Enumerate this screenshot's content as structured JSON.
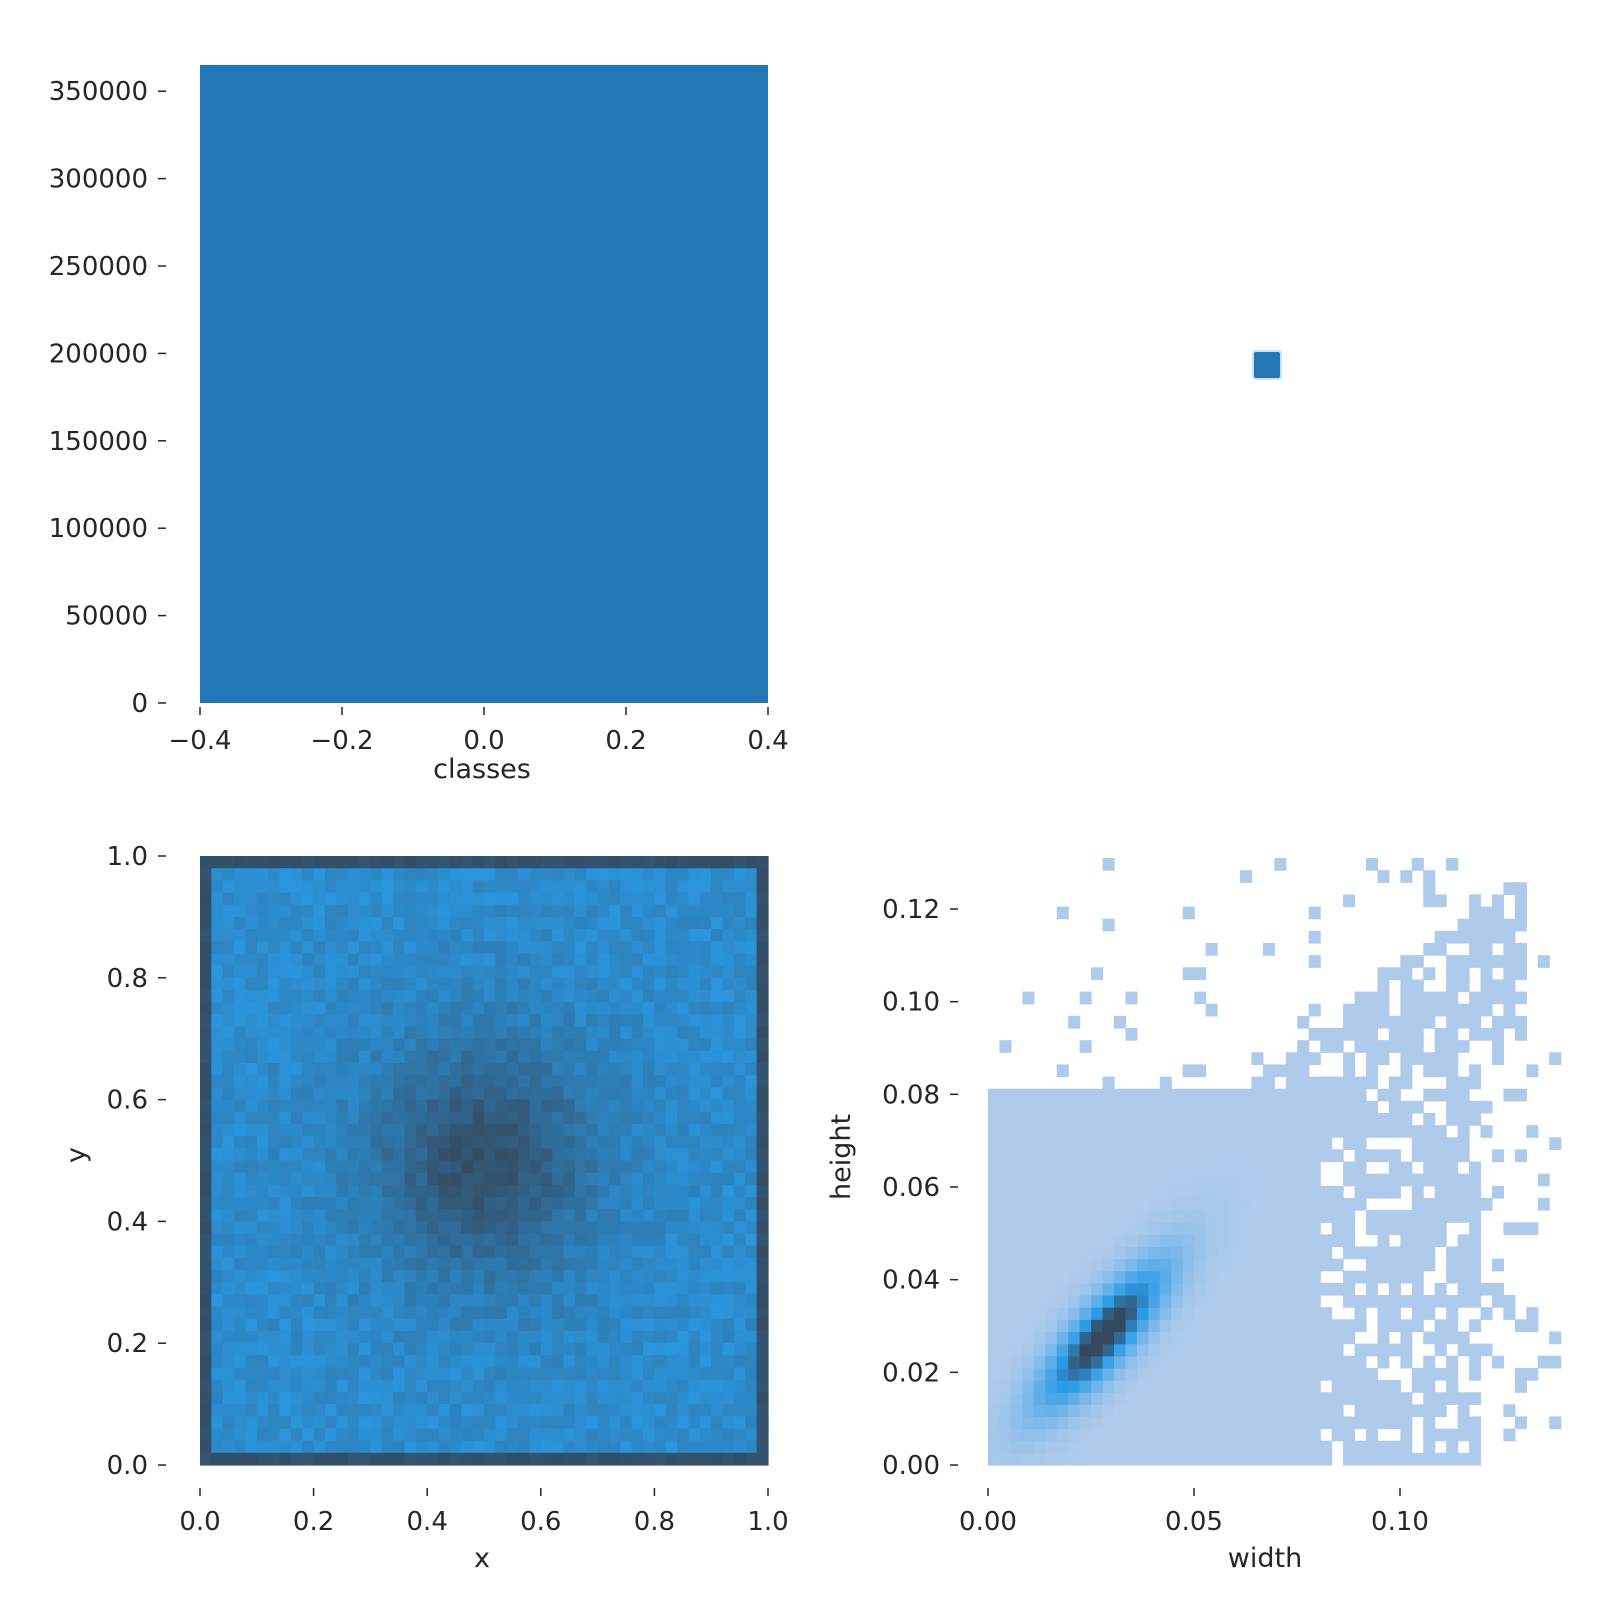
{
  "chart_data": [
    {
      "type": "bar",
      "panel": "top-left",
      "xlabel": "classes",
      "ylabel": "",
      "xlim": [
        -0.4,
        0.4
      ],
      "ylim": [
        0,
        365000
      ],
      "x_ticks": [
        -0.4,
        -0.2,
        0.0,
        0.2,
        0.4
      ],
      "x_tick_labels": [
        "−0.4",
        "−0.2",
        "0.0",
        "0.2",
        "0.4"
      ],
      "y_ticks": [
        0,
        50000,
        100000,
        150000,
        200000,
        250000,
        300000,
        350000
      ],
      "y_tick_labels": [
        "0",
        "50000",
        "100000",
        "150000",
        "200000",
        "250000",
        "300000",
        "350000"
      ],
      "bars": [
        {
          "x_start": -0.4,
          "x_end": 0.4,
          "value": 365000
        }
      ],
      "color": "#2178b4",
      "grid": false
    },
    {
      "type": "heatmap",
      "panel": "top-right",
      "xlabel": "",
      "ylabel": "",
      "axes_visible": false,
      "mark": {
        "shape": "square",
        "x": 0.5,
        "y": 0.5,
        "color": "#1f77b4"
      }
    },
    {
      "type": "heatmap",
      "panel": "bottom-left",
      "xlabel": "x",
      "ylabel": "y",
      "xlim": [
        0.0,
        1.0
      ],
      "ylim": [
        0.0,
        1.0
      ],
      "x_ticks": [
        0.0,
        0.2,
        0.4,
        0.6,
        0.8,
        1.0
      ],
      "x_tick_labels": [
        "0.0",
        "0.2",
        "0.4",
        "0.6",
        "0.8",
        "1.0"
      ],
      "y_ticks": [
        0.0,
        0.2,
        0.4,
        0.6,
        0.8,
        1.0
      ],
      "y_tick_labels": [
        "0.0",
        "0.2",
        "0.4",
        "0.6",
        "0.8",
        "1.0"
      ],
      "bins": [
        50,
        50
      ],
      "description_of_density": "dense everywhere, darkest at the centre (0.5, 0.5) and along all four borders",
      "dense_center": [
        0.5,
        0.5
      ],
      "colors": {
        "low": "#2a9be6",
        "high": "#34495e"
      },
      "grid": false
    },
    {
      "type": "heatmap",
      "panel": "bottom-right",
      "xlabel": "width",
      "ylabel": "height",
      "xlim": [
        0.0,
        0.139
      ],
      "ylim": [
        0.0,
        0.131
      ],
      "x_ticks": [
        0.0,
        0.05,
        0.1
      ],
      "x_tick_labels": [
        "0.00",
        "0.05",
        "0.10"
      ],
      "y_ticks": [
        0.0,
        0.02,
        0.04,
        0.06,
        0.08,
        0.1,
        0.12
      ],
      "y_tick_labels": [
        "0.00",
        "0.02",
        "0.04",
        "0.06",
        "0.08",
        "0.10",
        "0.12"
      ],
      "bins": [
        50,
        50
      ],
      "peak": {
        "width": 0.028,
        "height": 0.028
      },
      "correlation_axis": "width ≈ height",
      "colors": {
        "low": "#aecbec",
        "mid": "#2a9be6",
        "high": "#34495e"
      },
      "grid": false
    }
  ]
}
